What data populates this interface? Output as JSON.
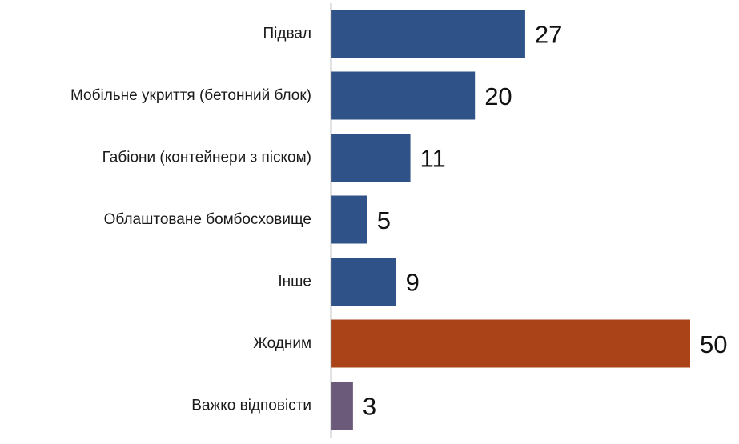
{
  "chart_data": {
    "type": "bar",
    "orientation": "horizontal",
    "categories": [
      "Підвал",
      "Мобільне укриття (бетонний блок)",
      "Габіони (контейнери з піском)",
      "Облаштоване бомбосховище",
      "Інше",
      "Жодним",
      "Важко відповісти"
    ],
    "values": [
      27,
      20,
      11,
      5,
      9,
      50,
      3
    ],
    "bar_colors": [
      "#2f5289",
      "#2f5289",
      "#2f5289",
      "#2f5289",
      "#2f5289",
      "#aa4418",
      "#6b5a79"
    ],
    "title": "",
    "xlabel": "",
    "ylabel": "",
    "xlim": [
      0,
      50
    ],
    "grid": false,
    "legend": "none",
    "data_labels": true
  }
}
